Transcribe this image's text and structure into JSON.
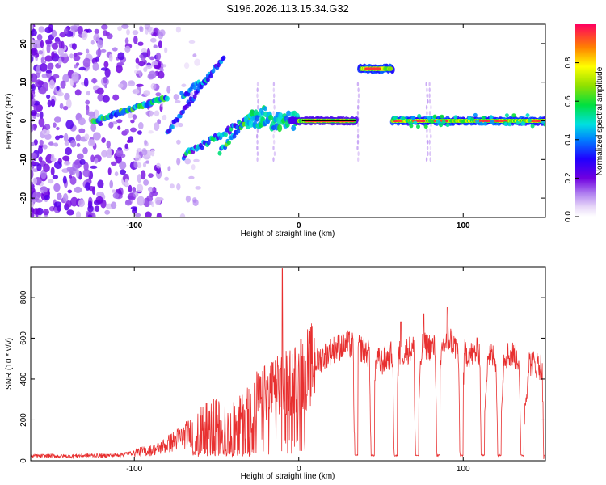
{
  "title": "S196.2026.113.15.34.G32",
  "colors": {
    "snr_line": "#e83030",
    "axis": "#000000",
    "background": "#ffffff"
  },
  "chart_data": [
    {
      "type": "heatmap",
      "xlabel": "Height of straight line (km)",
      "ylabel": "Frequency (Hz)",
      "xlim": [
        -163,
        150
      ],
      "ylim": [
        -25,
        25
      ],
      "x_ticks": [
        -100,
        0,
        100
      ],
      "y_ticks": [
        -20,
        -10,
        0,
        10,
        20
      ],
      "features": [
        {
          "x_range": [
            -163,
            -100
          ],
          "freq": 0,
          "amplitude": 0.15,
          "note": "scattered noise"
        },
        {
          "x_range": [
            -125,
            -80
          ],
          "freq_range": [
            0,
            7
          ],
          "amplitude": 0.5
        },
        {
          "x_range": [
            -80,
            -45
          ],
          "freq_range": [
            -3,
            17
          ],
          "amplitude": 0.35
        },
        {
          "x_range": [
            -50,
            -20
          ],
          "freq_range": [
            -8,
            5
          ],
          "amplitude": 0.45
        },
        {
          "x_range": [
            -30,
            0
          ],
          "freq": 0,
          "amplitude": 0.5
        },
        {
          "x_range": [
            0,
            35
          ],
          "freq": 0,
          "amplitude": 0.95
        },
        {
          "x_range": [
            37,
            57
          ],
          "freq": 13.5,
          "amplitude": 0.9
        },
        {
          "x_range": [
            57,
            150
          ],
          "freq": 0,
          "amplitude": 0.8
        }
      ],
      "colorbar": {
        "label": "Normalized spectral amplitude",
        "range": [
          0,
          1
        ],
        "ticks": [
          0.0,
          0.2,
          0.4,
          0.6,
          0.8
        ]
      }
    },
    {
      "type": "line",
      "xlabel": "Height of straight line (km)",
      "ylabel": "SNR (10 * v/v)",
      "xlim": [
        -163,
        150
      ],
      "ylim": [
        0,
        950
      ],
      "x_ticks": [
        -100,
        0,
        100
      ],
      "y_ticks": [
        0,
        200,
        400,
        600,
        800
      ],
      "series": [
        {
          "x": [
            -163,
            -150,
            -140,
            -130,
            -120,
            -110,
            -100,
            -95,
            -90,
            -85,
            -80,
            -75,
            -70,
            -65,
            -60,
            -55,
            -50,
            -45,
            -40,
            -35,
            -30,
            -25,
            -20,
            -15,
            -10,
            -5,
            0,
            5,
            10,
            15,
            20,
            25,
            30,
            33,
            34,
            36,
            40,
            43,
            44,
            47,
            50,
            55,
            57,
            58,
            61,
            65,
            70,
            71,
            75,
            80,
            83,
            84,
            87,
            90,
            92,
            95,
            97,
            98,
            101,
            105,
            110,
            111,
            115,
            120,
            121,
            125,
            130,
            134,
            135,
            140,
            145,
            148,
            149,
            150
          ],
          "y": [
            22,
            24,
            22,
            26,
            25,
            28,
            40,
            45,
            50,
            60,
            80,
            100,
            120,
            140,
            170,
            190,
            200,
            180,
            190,
            210,
            250,
            300,
            330,
            350,
            370,
            390,
            420,
            450,
            480,
            510,
            540,
            560,
            570,
            560,
            25,
            560,
            540,
            520,
            25,
            500,
            480,
            510,
            520,
            25,
            520,
            540,
            550,
            25,
            560,
            560,
            550,
            25,
            560,
            580,
            600,
            560,
            540,
            25,
            530,
            520,
            540,
            25,
            520,
            500,
            25,
            520,
            520,
            500,
            25,
            480,
            470,
            460,
            25,
            470
          ]
        }
      ]
    }
  ]
}
